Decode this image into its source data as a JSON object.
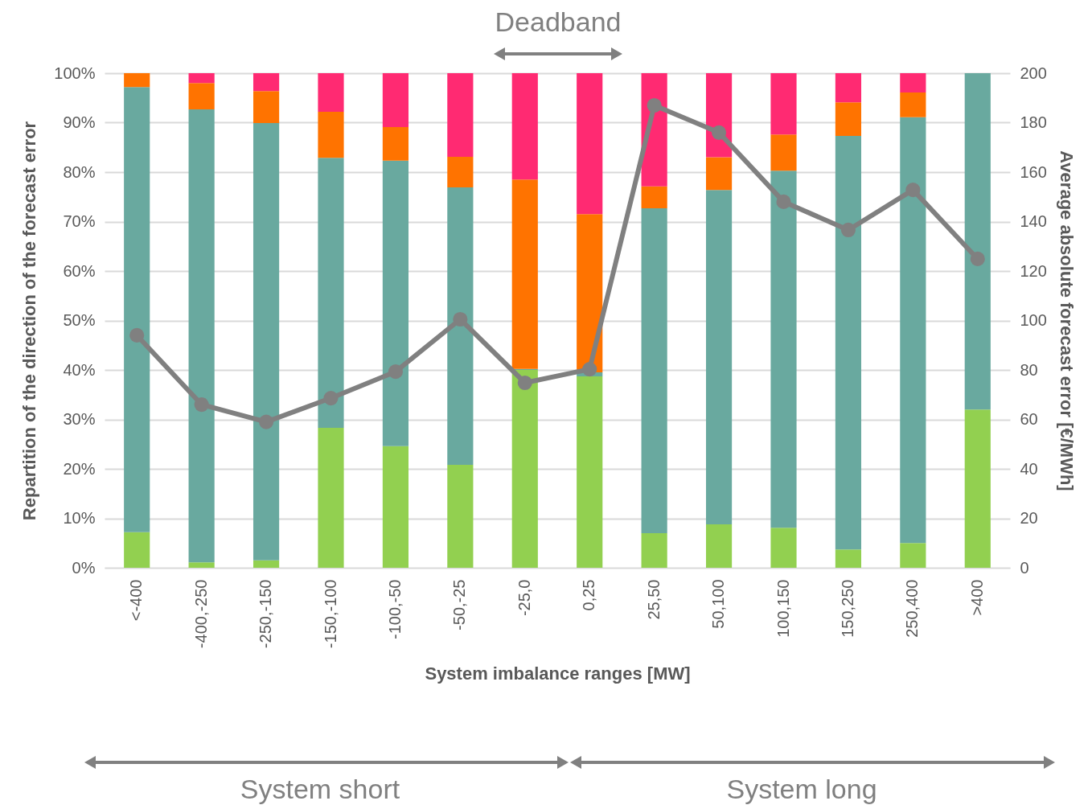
{
  "chart_data": {
    "type": "bar",
    "stacked": true,
    "categories": [
      "<-400",
      "-400,-250",
      "-250,-150",
      "-150,-100",
      "-100,-50",
      "-50,-25",
      "-25,0",
      "0,25",
      "25,50",
      "50,100",
      "100,150",
      "150,250",
      "250,400",
      ">400"
    ],
    "series": [
      {
        "color": "#92d050",
        "values": [
          7.2,
          1.1,
          1.5,
          28.3,
          24.6,
          20.8,
          40.0,
          38.7,
          7.0,
          8.8,
          8.1,
          3.7,
          5.0,
          32.0
        ]
      },
      {
        "color": "#69a99f",
        "values": [
          90.0,
          91.6,
          88.4,
          54.6,
          57.7,
          56.1,
          0.2,
          0.8,
          65.7,
          67.6,
          72.2,
          83.6,
          86.1,
          68.0
        ]
      },
      {
        "color": "#ff7300",
        "values": [
          2.8,
          5.3,
          6.5,
          9.3,
          6.8,
          6.2,
          38.3,
          32.0,
          4.4,
          6.6,
          7.3,
          6.8,
          5.0,
          0
        ]
      },
      {
        "color": "#ff2a72",
        "values": [
          0,
          2.0,
          3.6,
          7.8,
          10.9,
          16.9,
          21.5,
          28.5,
          22.9,
          17.0,
          12.4,
          5.9,
          3.9,
          0
        ]
      },
      {
        "type": "line",
        "axis": "y2",
        "color": "#808080",
        "values": [
          94,
          66,
          59,
          68.6,
          79.3,
          100.5,
          74.8,
          80.3,
          187,
          176,
          148,
          136.6,
          152.8,
          124.9
        ]
      }
    ],
    "ylim": [
      0,
      100
    ],
    "yticks": [
      {
        "value": 0,
        "label": "0%"
      },
      {
        "value": 10,
        "label": "10%"
      },
      {
        "value": 20,
        "label": "20%"
      },
      {
        "value": 30,
        "label": "30%"
      },
      {
        "value": 40,
        "label": "40%"
      },
      {
        "value": 50,
        "label": "50%"
      },
      {
        "value": 60,
        "label": "60%"
      },
      {
        "value": 70,
        "label": "70%"
      },
      {
        "value": 80,
        "label": "80%"
      },
      {
        "value": 90,
        "label": "90%"
      },
      {
        "value": 100,
        "label": "100%"
      }
    ],
    "y2lim": [
      0,
      200
    ],
    "y2ticks": [
      0,
      20,
      40,
      60,
      80,
      100,
      120,
      140,
      160,
      180,
      200
    ],
    "xlabel": "System imbalance ranges [MW]",
    "ylabel": "Repartition of the direction of the forecast error",
    "y2label": "Average absolute forecast error [€/MWh]",
    "grid": "y",
    "marker": "circle",
    "line_style": "solid",
    "annotations": [
      "Deadband",
      "System short",
      "System long"
    ]
  }
}
